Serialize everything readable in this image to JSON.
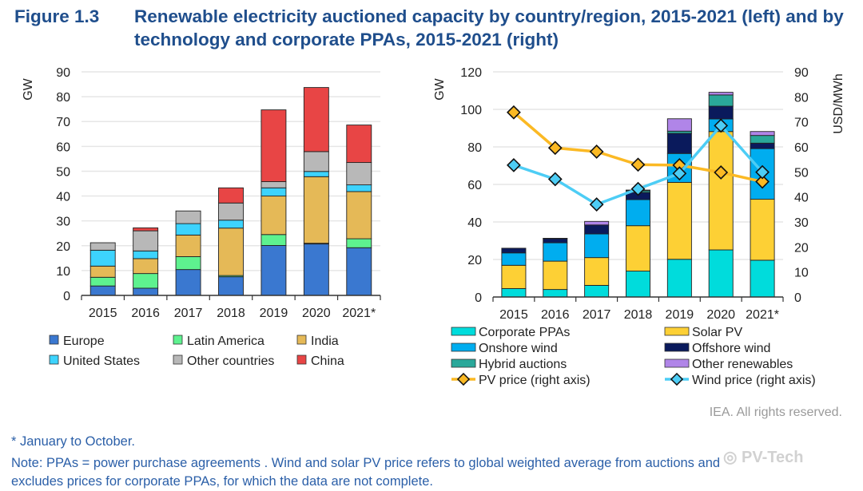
{
  "title": {
    "figure": "Figure 1.3",
    "text": "Renewable electricity auctioned capacity by country/region, 2015-2021 (left) and by technology and corporate PPAs, 2015-2021 (right)"
  },
  "chart_data": [
    {
      "type": "bar",
      "stacked": true,
      "ylabel": "GW",
      "ylim": [
        0,
        90
      ],
      "yticks": [
        0,
        10,
        20,
        30,
        40,
        50,
        60,
        70,
        80,
        90
      ],
      "grid": true,
      "legend": "bottom",
      "categories": [
        "2015",
        "2016",
        "2017",
        "2018",
        "2019",
        "2020",
        "2021*"
      ],
      "series": [
        {
          "name": "Europe",
          "color": "#3a78d0",
          "values": [
            3.8,
            2.9,
            10.4,
            7.5,
            20.1,
            20.7,
            19.2
          ]
        },
        {
          "name": "Latin America",
          "color": "#5ef28f",
          "values": [
            3.5,
            5.9,
            5.2,
            0.5,
            4.4,
            0.3,
            3.6
          ]
        },
        {
          "name": "India",
          "color": "#e5b957",
          "values": [
            4.5,
            6.0,
            8.7,
            19.1,
            15.5,
            26.8,
            19.0
          ]
        },
        {
          "name": "United States",
          "color": "#3dd3fd",
          "values": [
            6.4,
            3.1,
            4.6,
            3.2,
            3.3,
            2.1,
            2.7
          ]
        },
        {
          "name": "Other countries",
          "color": "#b8b8b8",
          "values": [
            3.0,
            8.1,
            5.1,
            6.9,
            2.5,
            8.0,
            9.0
          ]
        },
        {
          "name": "China",
          "color": "#e84545",
          "values": [
            0,
            1.2,
            0,
            6.1,
            28.9,
            25.8,
            15.1
          ]
        }
      ]
    },
    {
      "type": "bar",
      "stacked": true,
      "ylabel": "GW",
      "ylim": [
        0,
        120
      ],
      "yticks": [
        0,
        20,
        40,
        60,
        80,
        100,
        120
      ],
      "y2label": "USD/MWh",
      "y2lim": [
        0,
        90
      ],
      "y2ticks": [
        0,
        10,
        20,
        30,
        40,
        50,
        60,
        70,
        80,
        90
      ],
      "grid": true,
      "legend": "bottom",
      "categories": [
        "2015",
        "2016",
        "2017",
        "2018",
        "2019",
        "2020",
        "2021*"
      ],
      "series": [
        {
          "name": "Corporate PPAs",
          "color": "#00dcdc",
          "values": [
            4.5,
            4.0,
            6.2,
            13.8,
            20.1,
            25.1,
            19.6
          ]
        },
        {
          "name": "Solar PV",
          "color": "#fdd035",
          "values": [
            12.4,
            15.1,
            14.8,
            24.2,
            41.0,
            63.1,
            32.5
          ]
        },
        {
          "name": "Onshore wind",
          "color": "#00adef",
          "values": [
            6.6,
            9.8,
            12.6,
            13.9,
            15.4,
            6.7,
            27.0
          ]
        },
        {
          "name": "Offshore wind",
          "color": "#0a1a5c",
          "values": [
            2.5,
            2.2,
            4.8,
            3.8,
            10.7,
            6.8,
            2.9
          ]
        },
        {
          "name": "Hybrid auctions",
          "color": "#2aa89a",
          "values": [
            0,
            0,
            0,
            0.9,
            1.2,
            6.0,
            4.1
          ]
        },
        {
          "name": "Other renewables",
          "color": "#b085e8",
          "values": [
            0,
            0.2,
            1.9,
            0.4,
            6.6,
            1.4,
            2.1
          ]
        }
      ],
      "lines": [
        {
          "name": "PV price (right axis)",
          "color": "#fbb924",
          "marker": "diamond",
          "axis": "right",
          "values": [
            73.8,
            59.6,
            58.1,
            52.9,
            52.7,
            49.8,
            46.1
          ]
        },
        {
          "name": "Wind price (right axis)",
          "color": "#4dcdf5",
          "marker": "diamond",
          "axis": "right",
          "values": [
            52.7,
            47.1,
            37.0,
            43.2,
            49.4,
            68.5,
            49.9
          ]
        }
      ]
    }
  ],
  "footer": {
    "rights": "IEA. All rights reserved.",
    "note1": "* January to October.",
    "note2": "Note: PPAs = power purchase agreements . Wind and solar PV price refers to global weighted average from auctions and",
    "note3": "excludes prices for corporate PPAs, for which the data are not complete."
  },
  "watermark": "PV-Tech"
}
